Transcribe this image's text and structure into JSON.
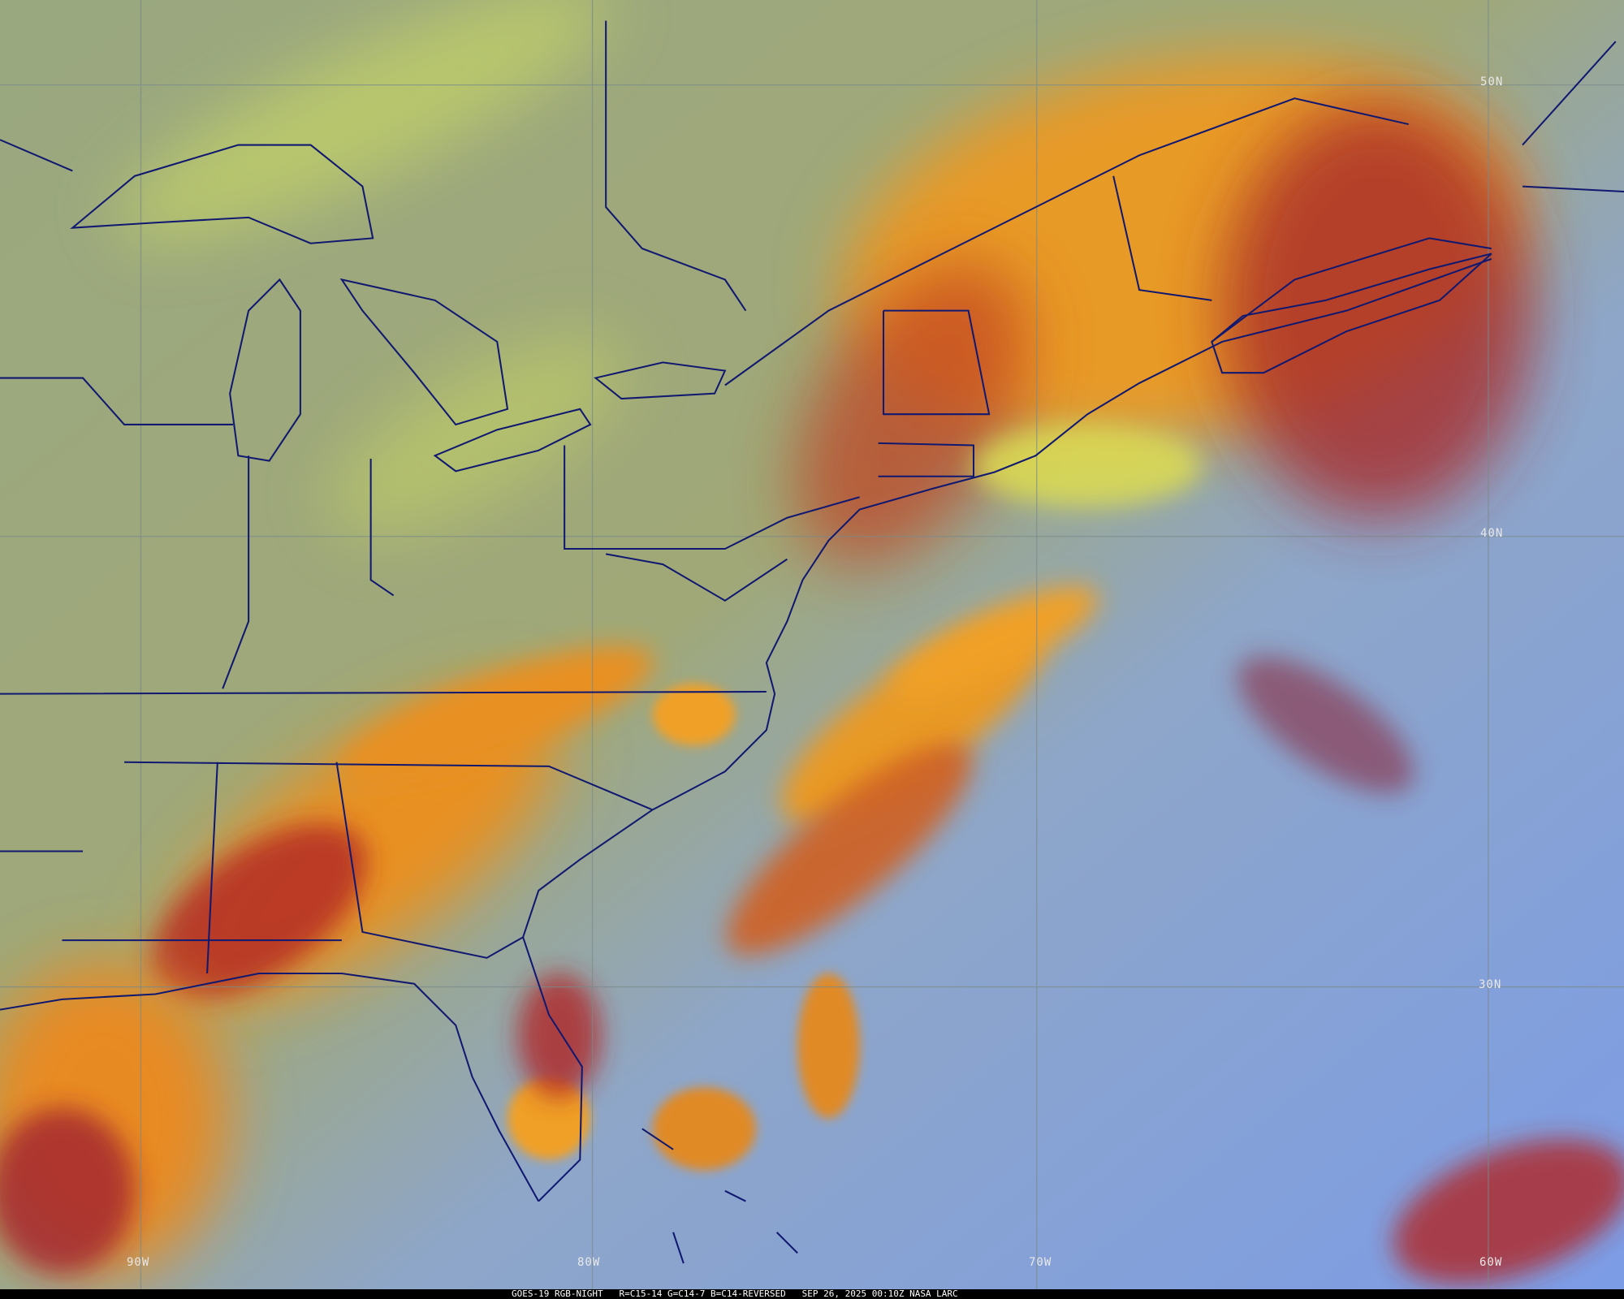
{
  "map": {
    "caption": "GOES-19 RGB-NIGHT   R=C15-14 G=C14-7 B=C14-REVERSED   SEP 26, 2025 00:10Z NASA LARC",
    "latitude_labels": [
      "50N",
      "40N",
      "30N"
    ],
    "longitude_labels": [
      "90W",
      "80W",
      "70W",
      "60W"
    ],
    "colors": {
      "land_clear": "#8fa07e",
      "ocean_clear": "#7d9ee0",
      "high_cloud_orange": "#f0a020",
      "deep_cloud_red": "#a01830",
      "low_cloud_yellow": "#d8e050",
      "borders": "#101870",
      "grid": "#7a8a8a"
    }
  }
}
